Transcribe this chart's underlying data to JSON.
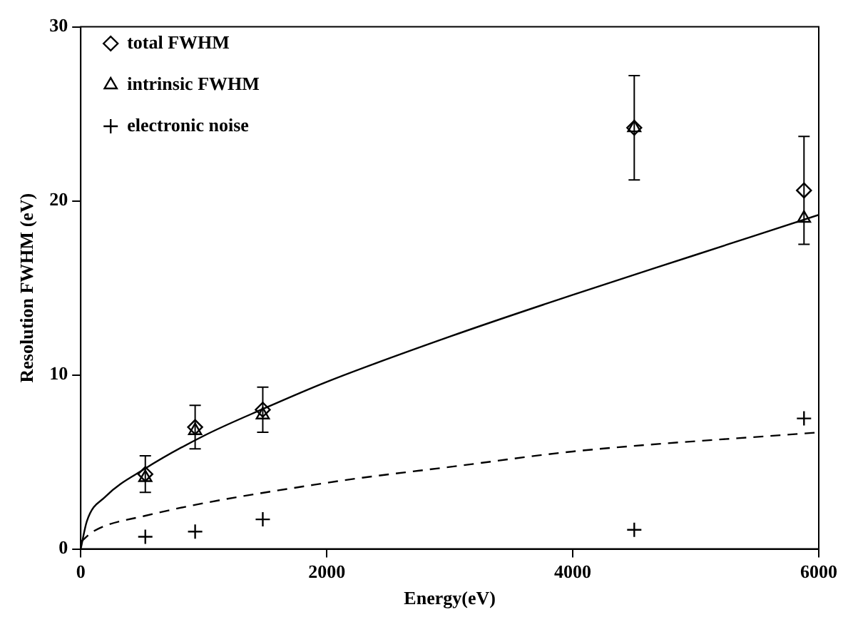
{
  "chart_data": {
    "type": "scatter",
    "xlabel": "Energy(eV)",
    "ylabel": "Resolution FWHM (eV)",
    "xlim": [
      0,
      6000
    ],
    "xticks": [
      0,
      2000,
      4000,
      6000
    ],
    "ylim": [
      0,
      30
    ],
    "yticks": [
      0,
      10,
      20,
      30
    ],
    "grid": false,
    "legend": "top left",
    "series": [
      {
        "name": "total FWHM",
        "marker": "diamond",
        "color": "#000000",
        "x": [
          525,
          930,
          1480,
          4500,
          5880
        ],
        "values": [
          4.3,
          7.0,
          8.0,
          24.2,
          20.6
        ],
        "errors": [
          1.05,
          1.25,
          1.3,
          3.0,
          3.1
        ]
      },
      {
        "name": "intrinsic FWHM",
        "marker": "triangle",
        "color": "#000000",
        "x": [
          525,
          930,
          1480,
          4500,
          5880
        ],
        "values": [
          4.1,
          6.8,
          7.7,
          24.2,
          19.0
        ]
      },
      {
        "name": "electronic noise",
        "marker": "cross",
        "color": "#000000",
        "x": [
          525,
          930,
          1480,
          4500,
          5880
        ],
        "values": [
          0.7,
          1.0,
          1.7,
          1.1,
          7.5
        ]
      },
      {
        "type": "line",
        "marker": "none",
        "line_style": "solid",
        "color": "#000000",
        "x": [
          0,
          50,
          200,
          520,
          1000,
          1500,
          2000,
          3000,
          4000,
          5000,
          6000
        ],
        "values": [
          0,
          1.6,
          3.0,
          4.6,
          6.5,
          8.1,
          9.6,
          12.2,
          14.6,
          16.9,
          19.2
        ]
      },
      {
        "type": "line",
        "marker": "none",
        "line_style": "dashed",
        "color": "#000000",
        "x": [
          0,
          100,
          520,
          2000,
          3100,
          4000,
          6000
        ],
        "values": [
          0.4,
          1.0,
          1.9,
          3.8,
          4.8,
          5.6,
          6.7
        ]
      }
    ]
  }
}
